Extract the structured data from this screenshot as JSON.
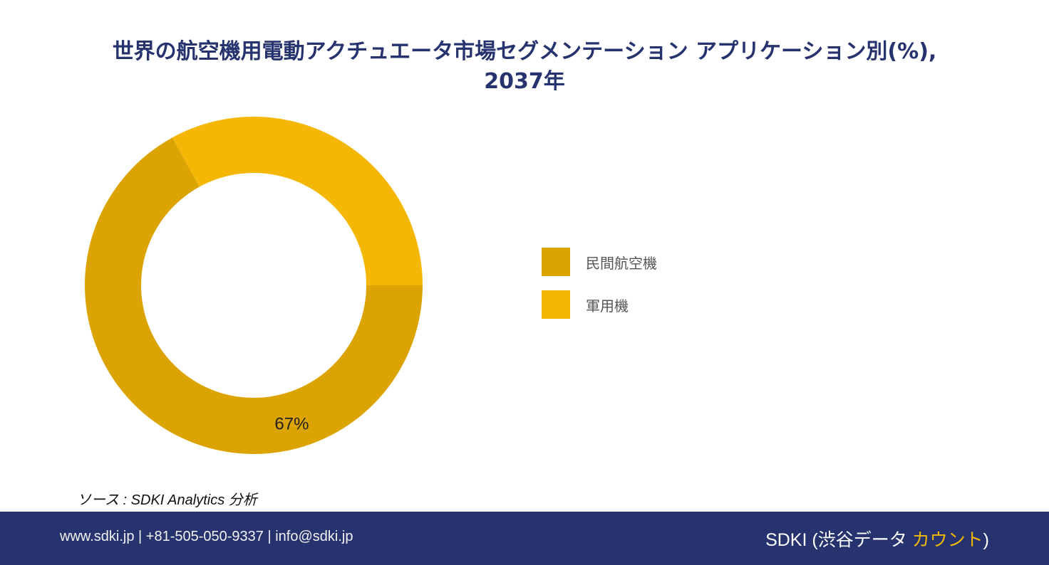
{
  "chart_data": {
    "type": "pie",
    "donut": true,
    "title_lines": [
      "世界の航空機用電動アクチュエータ市場セグメンテーション アプリケーション別(%),",
      "2037年"
    ],
    "categories": [
      "民間航空機",
      "軍用機"
    ],
    "values": [
      67,
      33
    ],
    "colors": [
      "#dba402",
      "#f5b705"
    ],
    "data_labels": [
      "67%",
      ""
    ],
    "legend_position": "right"
  },
  "source": "ソース : SDKI Analytics 分析",
  "footer": {
    "contact": "www.sdki.jp | +81-505-050-9337 | info@sdki.jp",
    "brand_prefix": "SDKI (渋谷データ ",
    "brand_accent": "カウント",
    "brand_suffix": ")"
  }
}
